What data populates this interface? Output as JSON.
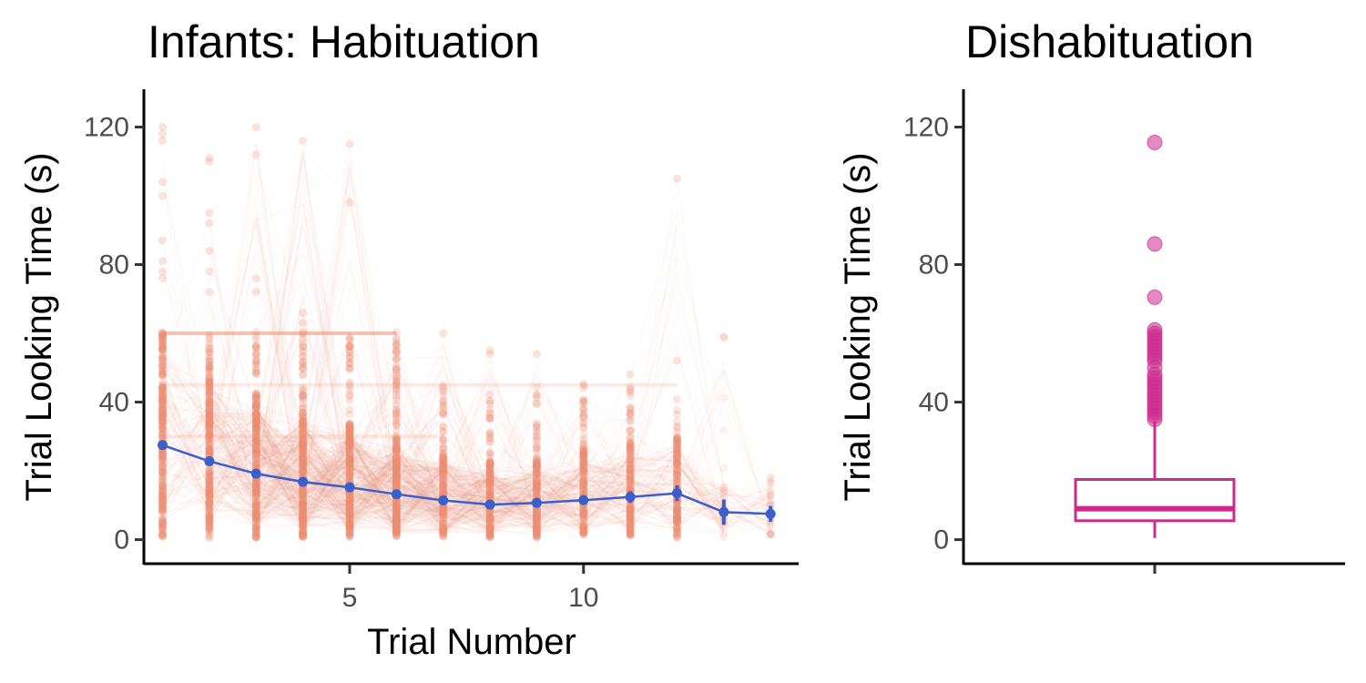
{
  "colors": {
    "habituation_raw": "#ec8f70",
    "habituation_mean": "#3a5fcd",
    "dishabituation": "#cc2b8e",
    "axis": "#000000",
    "tick_text": "#4d4d4d"
  },
  "chart_data": [
    {
      "type": "line",
      "title": "Infants: Habituation",
      "xlabel": "Trial Number",
      "ylabel": "Trial Looking Time (s)",
      "xlim": [
        0.6,
        14.6
      ],
      "ylim": [
        -7,
        131
      ],
      "x_ticks": [
        5,
        10
      ],
      "y_ticks": [
        0,
        40,
        80,
        120
      ],
      "grid": false,
      "legend": "none",
      "series": [
        {
          "style": "mean-with-error-bars",
          "x": [
            1,
            2,
            3,
            4,
            5,
            6,
            7,
            8,
            9,
            10,
            11,
            12,
            13,
            14
          ],
          "y": [
            27.5,
            22.8,
            19.2,
            16.8,
            15.2,
            13.2,
            11.4,
            10.2,
            10.7,
            11.5,
            12.4,
            13.5,
            8.0,
            7.5
          ],
          "error": [
            0.6,
            0.6,
            0.6,
            0.6,
            0.6,
            0.6,
            0.7,
            0.8,
            0.9,
            1.2,
            1.7,
            2.3,
            3.7,
            2.3
          ]
        }
      ],
      "raw_points": {
        "style": "faint-individual-trials",
        "x": [
          1,
          2,
          3,
          4,
          5,
          6,
          7,
          8,
          9,
          10,
          11,
          12,
          13,
          14
        ],
        "ymax": [
          120,
          111,
          120,
          116,
          115,
          60,
          60,
          55,
          54,
          45,
          48,
          105,
          59,
          18
        ],
        "outliers": [
          [
            1,
            120
          ],
          [
            1,
            118
          ],
          [
            1,
            116
          ],
          [
            1,
            104
          ],
          [
            1,
            100
          ],
          [
            1,
            87
          ],
          [
            1,
            81
          ],
          [
            1,
            78
          ],
          [
            1,
            76
          ],
          [
            2,
            111
          ],
          [
            2,
            110
          ],
          [
            2,
            95
          ],
          [
            2,
            92
          ],
          [
            2,
            84
          ],
          [
            2,
            78
          ],
          [
            2,
            72
          ],
          [
            3,
            120
          ],
          [
            3,
            112
          ],
          [
            3,
            76
          ],
          [
            3,
            72
          ],
          [
            4,
            116
          ],
          [
            4,
            66
          ],
          [
            4,
            63
          ],
          [
            5,
            115
          ],
          [
            5,
            98
          ],
          [
            7,
            60
          ],
          [
            8,
            55
          ],
          [
            8,
            54
          ],
          [
            9,
            54
          ],
          [
            11,
            48
          ],
          [
            12,
            105
          ],
          [
            12,
            52
          ],
          [
            13,
            59
          ],
          [
            14,
            18
          ]
        ],
        "plateaus": [
          {
            "y": 60,
            "x": [
              1,
              6
            ]
          },
          {
            "y": 45,
            "x": [
              1,
              12
            ]
          },
          {
            "y": 30,
            "x": [
              1,
              7
            ]
          }
        ]
      }
    },
    {
      "type": "box",
      "title": "Dishabituation",
      "xlabel": "",
      "ylabel": "Trial Looking Time (s)",
      "ylim": [
        -7,
        131
      ],
      "y_ticks": [
        0,
        40,
        80,
        120
      ],
      "grid": false,
      "legend": "none",
      "box": {
        "whisker_low": 0.5,
        "q1": 5.5,
        "median": 9,
        "q3": 17.5,
        "whisker_high": 34.5,
        "outliers": [
          115.5,
          86,
          70.5,
          61,
          60,
          59,
          58,
          57,
          56,
          55,
          54,
          53,
          52,
          50,
          48,
          47,
          46,
          45,
          44,
          43,
          42,
          41,
          40,
          39,
          38,
          37,
          36,
          35
        ]
      }
    }
  ]
}
